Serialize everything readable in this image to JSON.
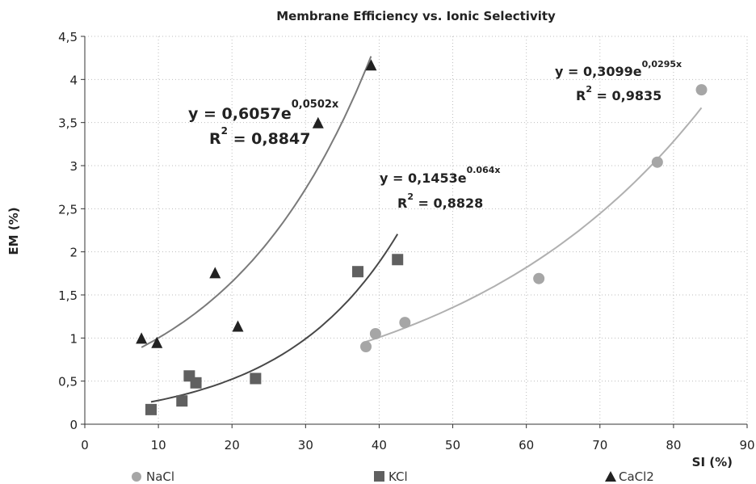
{
  "chart_data": {
    "type": "scatter",
    "title": "Membrane Efficiency vs. Ionic Selectivity",
    "xlabel": "SI (%)",
    "ylabel": "EM (%)",
    "xlim": [
      0,
      90
    ],
    "ylim": [
      0,
      4.5
    ],
    "x_ticks": [
      "0",
      "10",
      "20",
      "30",
      "40",
      "50",
      "60",
      "70",
      "80",
      "90"
    ],
    "y_ticks": [
      "0",
      "0,5",
      "1",
      "1,5",
      "2",
      "2,5",
      "3",
      "3,5",
      "4",
      "4,5"
    ],
    "grid": "dotted",
    "legend_position": "bottom",
    "series": [
      {
        "name": "NaCl",
        "marker": "circle",
        "color": "#a6a6a6",
        "trend_color": "#b0b0b0",
        "points": [
          [
            38.2,
            0.9
          ],
          [
            39.5,
            1.05
          ],
          [
            43.5,
            1.18
          ],
          [
            61.7,
            1.69
          ],
          [
            77.8,
            3.04
          ],
          [
            83.8,
            3.88
          ]
        ],
        "fit": {
          "a": 0.3099,
          "b": 0.0295,
          "x_range": [
            38.2,
            83.8
          ]
        },
        "equation": {
          "prefix": "y = 0,3099e",
          "exponent": "0,0295x",
          "r2_label": "R",
          "r2_sup": "2",
          "r2_value": " = 0,9835"
        }
      },
      {
        "name": "KCl",
        "marker": "square",
        "color": "#606060",
        "trend_color": "#484848",
        "points": [
          [
            9.0,
            0.17
          ],
          [
            13.2,
            0.27
          ],
          [
            14.2,
            0.56
          ],
          [
            15.1,
            0.48
          ],
          [
            23.2,
            0.53
          ],
          [
            37.1,
            1.77
          ],
          [
            42.5,
            1.91
          ]
        ],
        "fit": {
          "a": 0.1453,
          "b": 0.064,
          "x_range": [
            9.0,
            42.5
          ]
        },
        "equation": {
          "prefix": "y = 0,1453e",
          "exponent": "0.064x",
          "r2_label": "R",
          "r2_sup": "2",
          "r2_value": " = 0,8828"
        }
      },
      {
        "name": "CaCl2",
        "marker": "triangle",
        "color": "#222222",
        "trend_color": "#7a7a7a",
        "points": [
          [
            7.7,
            0.99
          ],
          [
            9.8,
            0.94
          ],
          [
            17.7,
            1.75
          ],
          [
            20.8,
            1.13
          ],
          [
            31.7,
            3.49
          ],
          [
            38.9,
            4.16
          ]
        ],
        "fit": {
          "a": 0.6057,
          "b": 0.0502,
          "x_range": [
            7.7,
            38.9
          ]
        },
        "equation": {
          "prefix": "y = 0,6057e",
          "exponent": "0,0502x",
          "r2_label": "R",
          "r2_sup": "2",
          "r2_value": " = 0,8847"
        }
      }
    ]
  }
}
